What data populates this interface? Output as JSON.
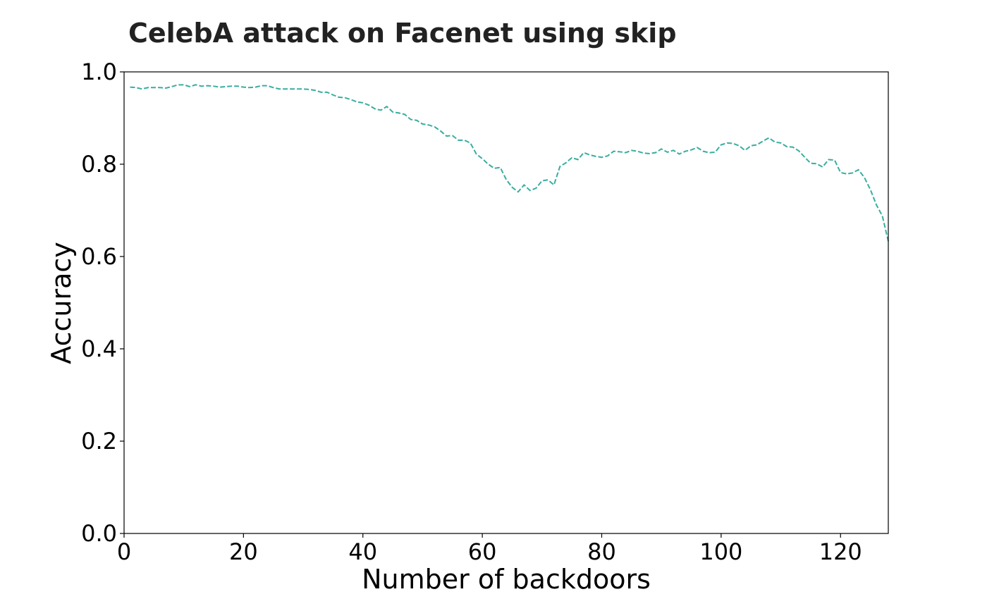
{
  "chart_data": {
    "type": "line",
    "title": "CelebA attack on Facenet using skip",
    "xlabel": "Number of backdoors",
    "ylabel": "Accuracy",
    "xlim": [
      0,
      128
    ],
    "ylim": [
      0.0,
      1.0
    ],
    "xticks": [
      0,
      20,
      40,
      60,
      80,
      100,
      120
    ],
    "xtick_labels": [
      "0",
      "20",
      "40",
      "60",
      "80",
      "100",
      "120"
    ],
    "yticks": [
      0.0,
      0.2,
      0.4,
      0.6,
      0.8,
      1.0
    ],
    "ytick_labels": [
      "0.0",
      "0.2",
      "0.4",
      "0.6",
      "0.8",
      "1.0"
    ],
    "grid": false,
    "legend": "none",
    "series": [
      {
        "line_style": "dashed",
        "color": "#3aada0",
        "x": [
          1,
          2,
          3,
          4,
          5,
          6,
          7,
          8,
          9,
          10,
          11,
          12,
          13,
          14,
          15,
          16,
          17,
          18,
          19,
          20,
          21,
          22,
          23,
          24,
          25,
          26,
          27,
          28,
          29,
          30,
          31,
          32,
          33,
          34,
          35,
          36,
          37,
          38,
          39,
          40,
          41,
          42,
          43,
          44,
          45,
          46,
          47,
          48,
          49,
          50,
          51,
          52,
          53,
          54,
          55,
          56,
          57,
          58,
          59,
          60,
          61,
          62,
          63,
          64,
          65,
          66,
          67,
          68,
          69,
          70,
          71,
          72,
          73,
          74,
          75,
          76,
          77,
          78,
          79,
          80,
          81,
          82,
          83,
          84,
          85,
          86,
          87,
          88,
          89,
          90,
          91,
          92,
          93,
          94,
          95,
          96,
          97,
          98,
          99,
          100,
          101,
          102,
          103,
          104,
          105,
          106,
          107,
          108,
          109,
          110,
          111,
          112,
          113,
          114,
          115,
          116,
          117,
          118,
          119,
          120,
          121,
          122,
          123,
          124,
          125,
          126,
          127,
          128
        ],
        "y": [
          0.967,
          0.966,
          0.963,
          0.966,
          0.966,
          0.966,
          0.965,
          0.968,
          0.972,
          0.972,
          0.968,
          0.972,
          0.969,
          0.97,
          0.969,
          0.967,
          0.968,
          0.969,
          0.969,
          0.967,
          0.966,
          0.967,
          0.97,
          0.97,
          0.966,
          0.963,
          0.963,
          0.963,
          0.963,
          0.963,
          0.962,
          0.96,
          0.956,
          0.956,
          0.95,
          0.945,
          0.944,
          0.94,
          0.935,
          0.933,
          0.928,
          0.92,
          0.917,
          0.925,
          0.913,
          0.911,
          0.908,
          0.897,
          0.895,
          0.887,
          0.885,
          0.881,
          0.872,
          0.861,
          0.862,
          0.852,
          0.852,
          0.846,
          0.822,
          0.812,
          0.8,
          0.791,
          0.793,
          0.767,
          0.75,
          0.74,
          0.755,
          0.743,
          0.748,
          0.764,
          0.766,
          0.755,
          0.795,
          0.803,
          0.814,
          0.81,
          0.825,
          0.82,
          0.817,
          0.815,
          0.818,
          0.828,
          0.827,
          0.825,
          0.83,
          0.828,
          0.824,
          0.823,
          0.825,
          0.833,
          0.826,
          0.83,
          0.822,
          0.828,
          0.831,
          0.836,
          0.828,
          0.825,
          0.826,
          0.842,
          0.846,
          0.845,
          0.84,
          0.83,
          0.84,
          0.842,
          0.85,
          0.857,
          0.848,
          0.846,
          0.838,
          0.837,
          0.829,
          0.815,
          0.802,
          0.801,
          0.794,
          0.81,
          0.809,
          0.782,
          0.779,
          0.781,
          0.788,
          0.771,
          0.745,
          0.712,
          0.688,
          0.633
        ]
      }
    ]
  }
}
